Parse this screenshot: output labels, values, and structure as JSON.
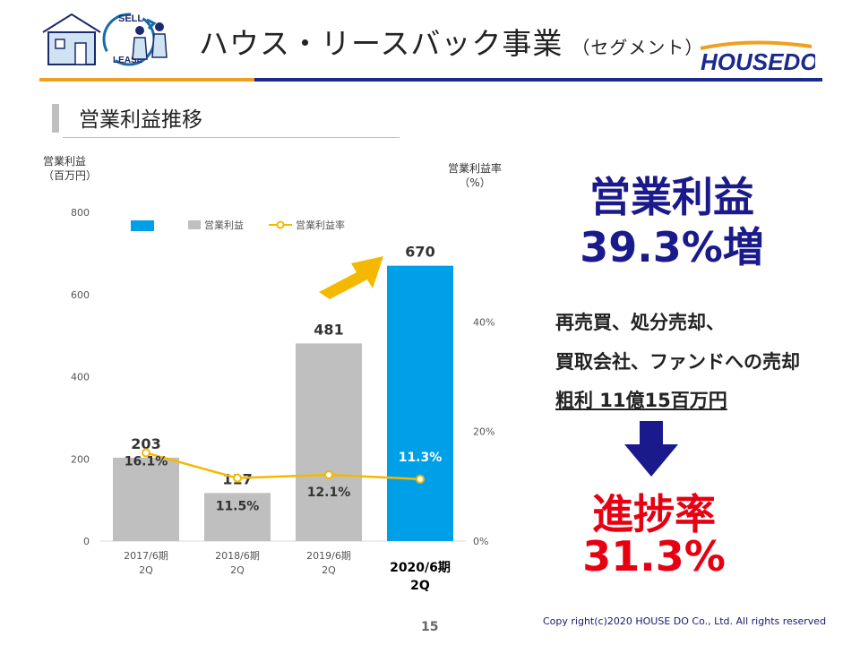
{
  "header": {
    "title": "ハウス・リースバック事業",
    "subtitle": "（セグメント）",
    "logo_text": "HOUSEDO",
    "illustration_text_top": "SELL",
    "illustration_text_bottom": "LEASE"
  },
  "section": {
    "title": "営業利益推移"
  },
  "highlight": {
    "line1": "営業利益",
    "line2": "39.3%増",
    "desc1": "再売買、処分売却、",
    "desc2": "買取会社、ファンドへの売却",
    "desc3": "粗利 11億15百万円",
    "progress_label": "進捗率",
    "progress_value": "31.3%"
  },
  "footer": {
    "page_number": "15",
    "copyright": "Copy right(c)2020 HOUSE DO Co., Ltd. All rights reserved"
  },
  "chart_data": {
    "type": "bar",
    "categories": [
      "2017/6期 2Q",
      "2018/6期 2Q",
      "2019/6期 2Q",
      "2020/6期 2Q"
    ],
    "series": [
      {
        "name": "営業利益",
        "kind": "bar",
        "axis": "left",
        "values": [
          203,
          117,
          481,
          670
        ],
        "value_labels": [
          "203",
          "117",
          "481",
          "670"
        ]
      },
      {
        "name": "営業利益率",
        "kind": "line",
        "axis": "right",
        "values": [
          16.1,
          11.5,
          12.1,
          11.3
        ],
        "value_labels": [
          "16.1%",
          "11.5%",
          "12.1%",
          "11.3%"
        ]
      }
    ],
    "highlight_index": 3,
    "ylabel_left": [
      "営業利益",
      "（百万円）"
    ],
    "ylabel_right": [
      "営業利益率",
      "（%）"
    ],
    "ylim_left": [
      0,
      800
    ],
    "yticks_left": [
      0,
      200,
      400,
      600,
      800
    ],
    "ylim_right": [
      0,
      60
    ],
    "yticks_right": [
      0,
      20,
      40
    ],
    "yticks_right_labels": [
      "0%",
      "20%",
      "40%"
    ],
    "grid": false,
    "legend_position": "top",
    "colors": {
      "bar": "#bfbfbf",
      "highlight_bar": "#00a0e9",
      "line": "#f5b800",
      "arrow": "#f5b800"
    }
  }
}
